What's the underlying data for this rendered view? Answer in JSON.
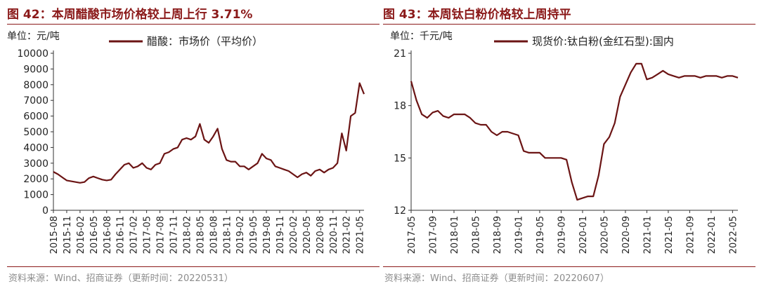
{
  "colors": {
    "brand": "#8b1a1a",
    "series": "#6b1414",
    "source_text": "#8c8c8c"
  },
  "charts": [
    {
      "title": "图 42：本周醋酸市场价格较上周上行 3.71%",
      "source": "资料来源：Wind、招商证券（更新时间：20220531）"
    },
    {
      "title": "图 43：本周钛白粉价格较上周持平",
      "source": "资料来源：Wind、招商证券（更新时间：20220607）"
    }
  ],
  "chart_data": [
    {
      "type": "line",
      "unit_label": "单位：元/吨",
      "ylim": [
        0,
        10000
      ],
      "yticks": [
        "0",
        "1000",
        "2000",
        "3000",
        "4000",
        "5000",
        "6000",
        "7000",
        "8000",
        "9000",
        "10000"
      ],
      "xlim": [
        "2015-08",
        "2021-06"
      ],
      "xticks": [
        "2015-08",
        "2015-11",
        "2016-02",
        "2016-05",
        "2016-08",
        "2016-11",
        "2017-02",
        "2017-05",
        "2017-08",
        "2017-11",
        "2018-02",
        "2018-05",
        "2018-08",
        "2018-11",
        "2019-02",
        "2019-05",
        "2019-08",
        "2019-11",
        "2020-02",
        "2020-05",
        "2020-08",
        "2020-11",
        "2021-02",
        "2021-05"
      ],
      "grid": false,
      "legend_position": "top",
      "series": [
        {
          "name": "醋酸：市场价（平均价）",
          "x": [
            "2015-08",
            "2015-09",
            "2015-10",
            "2015-11",
            "2015-12",
            "2016-01",
            "2016-02",
            "2016-03",
            "2016-04",
            "2016-05",
            "2016-06",
            "2016-07",
            "2016-08",
            "2016-09",
            "2016-10",
            "2016-11",
            "2016-12",
            "2017-01",
            "2017-02",
            "2017-03",
            "2017-04",
            "2017-05",
            "2017-06",
            "2017-07",
            "2017-08",
            "2017-09",
            "2017-10",
            "2017-11",
            "2017-12",
            "2018-01",
            "2018-02",
            "2018-03",
            "2018-04",
            "2018-05",
            "2018-06",
            "2018-07",
            "2018-08",
            "2018-09",
            "2018-10",
            "2018-11",
            "2018-12",
            "2019-01",
            "2019-02",
            "2019-03",
            "2019-04",
            "2019-05",
            "2019-06",
            "2019-07",
            "2019-08",
            "2019-09",
            "2019-10",
            "2019-11",
            "2019-12",
            "2020-01",
            "2020-02",
            "2020-03",
            "2020-04",
            "2020-05",
            "2020-06",
            "2020-07",
            "2020-08",
            "2020-09",
            "2020-10",
            "2020-11",
            "2020-12",
            "2021-01",
            "2021-02",
            "2021-03",
            "2021-04",
            "2021-05",
            "2021-06"
          ],
          "values": [
            2450,
            2300,
            2100,
            1900,
            1850,
            1800,
            1750,
            1800,
            2050,
            2150,
            2050,
            1950,
            1900,
            1950,
            2300,
            2600,
            2900,
            3000,
            2700,
            2800,
            3000,
            2700,
            2600,
            2900,
            3000,
            3600,
            3700,
            3900,
            4000,
            4500,
            4600,
            4500,
            4700,
            5500,
            4500,
            4300,
            4700,
            5200,
            3900,
            3200,
            3100,
            3100,
            2800,
            2800,
            2600,
            2800,
            3000,
            3600,
            3300,
            3200,
            2800,
            2700,
            2600,
            2500,
            2300,
            2100,
            2300,
            2400,
            2200,
            2500,
            2600,
            2400,
            2600,
            2700,
            3000,
            4900,
            3800,
            6000,
            6200,
            8100,
            7400
          ]
        }
      ]
    },
    {
      "type": "line",
      "unit_label": "单位：千元/吨",
      "ylim": [
        12,
        21
      ],
      "yticks": [
        "12",
        "15",
        "18",
        "21"
      ],
      "xlim": [
        "2017-05",
        "2022-06"
      ],
      "xticks": [
        "2017-05",
        "2017-09",
        "2018-01",
        "2018-05",
        "2018-09",
        "2019-01",
        "2019-05",
        "2019-09",
        "2020-01",
        "2020-05",
        "2020-09",
        "2021-01",
        "2021-05",
        "2021-09",
        "2022-01",
        "2022-05"
      ],
      "grid": false,
      "legend_position": "top",
      "series": [
        {
          "name": "现货价:钛白粉(金红石型):国内",
          "x": [
            "2017-05",
            "2017-06",
            "2017-07",
            "2017-08",
            "2017-09",
            "2017-10",
            "2017-11",
            "2017-12",
            "2018-01",
            "2018-02",
            "2018-03",
            "2018-04",
            "2018-05",
            "2018-06",
            "2018-07",
            "2018-08",
            "2018-09",
            "2018-10",
            "2018-11",
            "2018-12",
            "2019-01",
            "2019-02",
            "2019-03",
            "2019-04",
            "2019-05",
            "2019-06",
            "2019-07",
            "2019-08",
            "2019-09",
            "2019-10",
            "2019-11",
            "2019-12",
            "2020-01",
            "2020-02",
            "2020-03",
            "2020-04",
            "2020-05",
            "2020-06",
            "2020-07",
            "2020-08",
            "2020-09",
            "2020-10",
            "2020-11",
            "2020-12",
            "2021-01",
            "2021-02",
            "2021-03",
            "2021-04",
            "2021-05",
            "2021-06",
            "2021-07",
            "2021-08",
            "2021-09",
            "2021-10",
            "2021-11",
            "2021-12",
            "2022-01",
            "2022-02",
            "2022-03",
            "2022-04",
            "2022-05",
            "2022-06"
          ],
          "values": [
            19.4,
            18.3,
            17.5,
            17.3,
            17.6,
            17.7,
            17.4,
            17.3,
            17.5,
            17.5,
            17.5,
            17.3,
            17.0,
            16.9,
            16.9,
            16.5,
            16.3,
            16.5,
            16.5,
            16.4,
            16.3,
            15.4,
            15.3,
            15.3,
            15.3,
            15.0,
            15.0,
            15.0,
            15.0,
            14.9,
            13.6,
            12.6,
            12.7,
            12.8,
            12.8,
            14.0,
            15.8,
            16.2,
            17.0,
            18.5,
            19.2,
            19.9,
            20.4,
            20.4,
            19.5,
            19.6,
            19.8,
            20.0,
            19.8,
            19.7,
            19.6,
            19.7,
            19.7,
            19.7,
            19.6,
            19.7,
            19.7,
            19.7,
            19.6,
            19.7,
            19.7,
            19.6
          ]
        }
      ]
    }
  ]
}
